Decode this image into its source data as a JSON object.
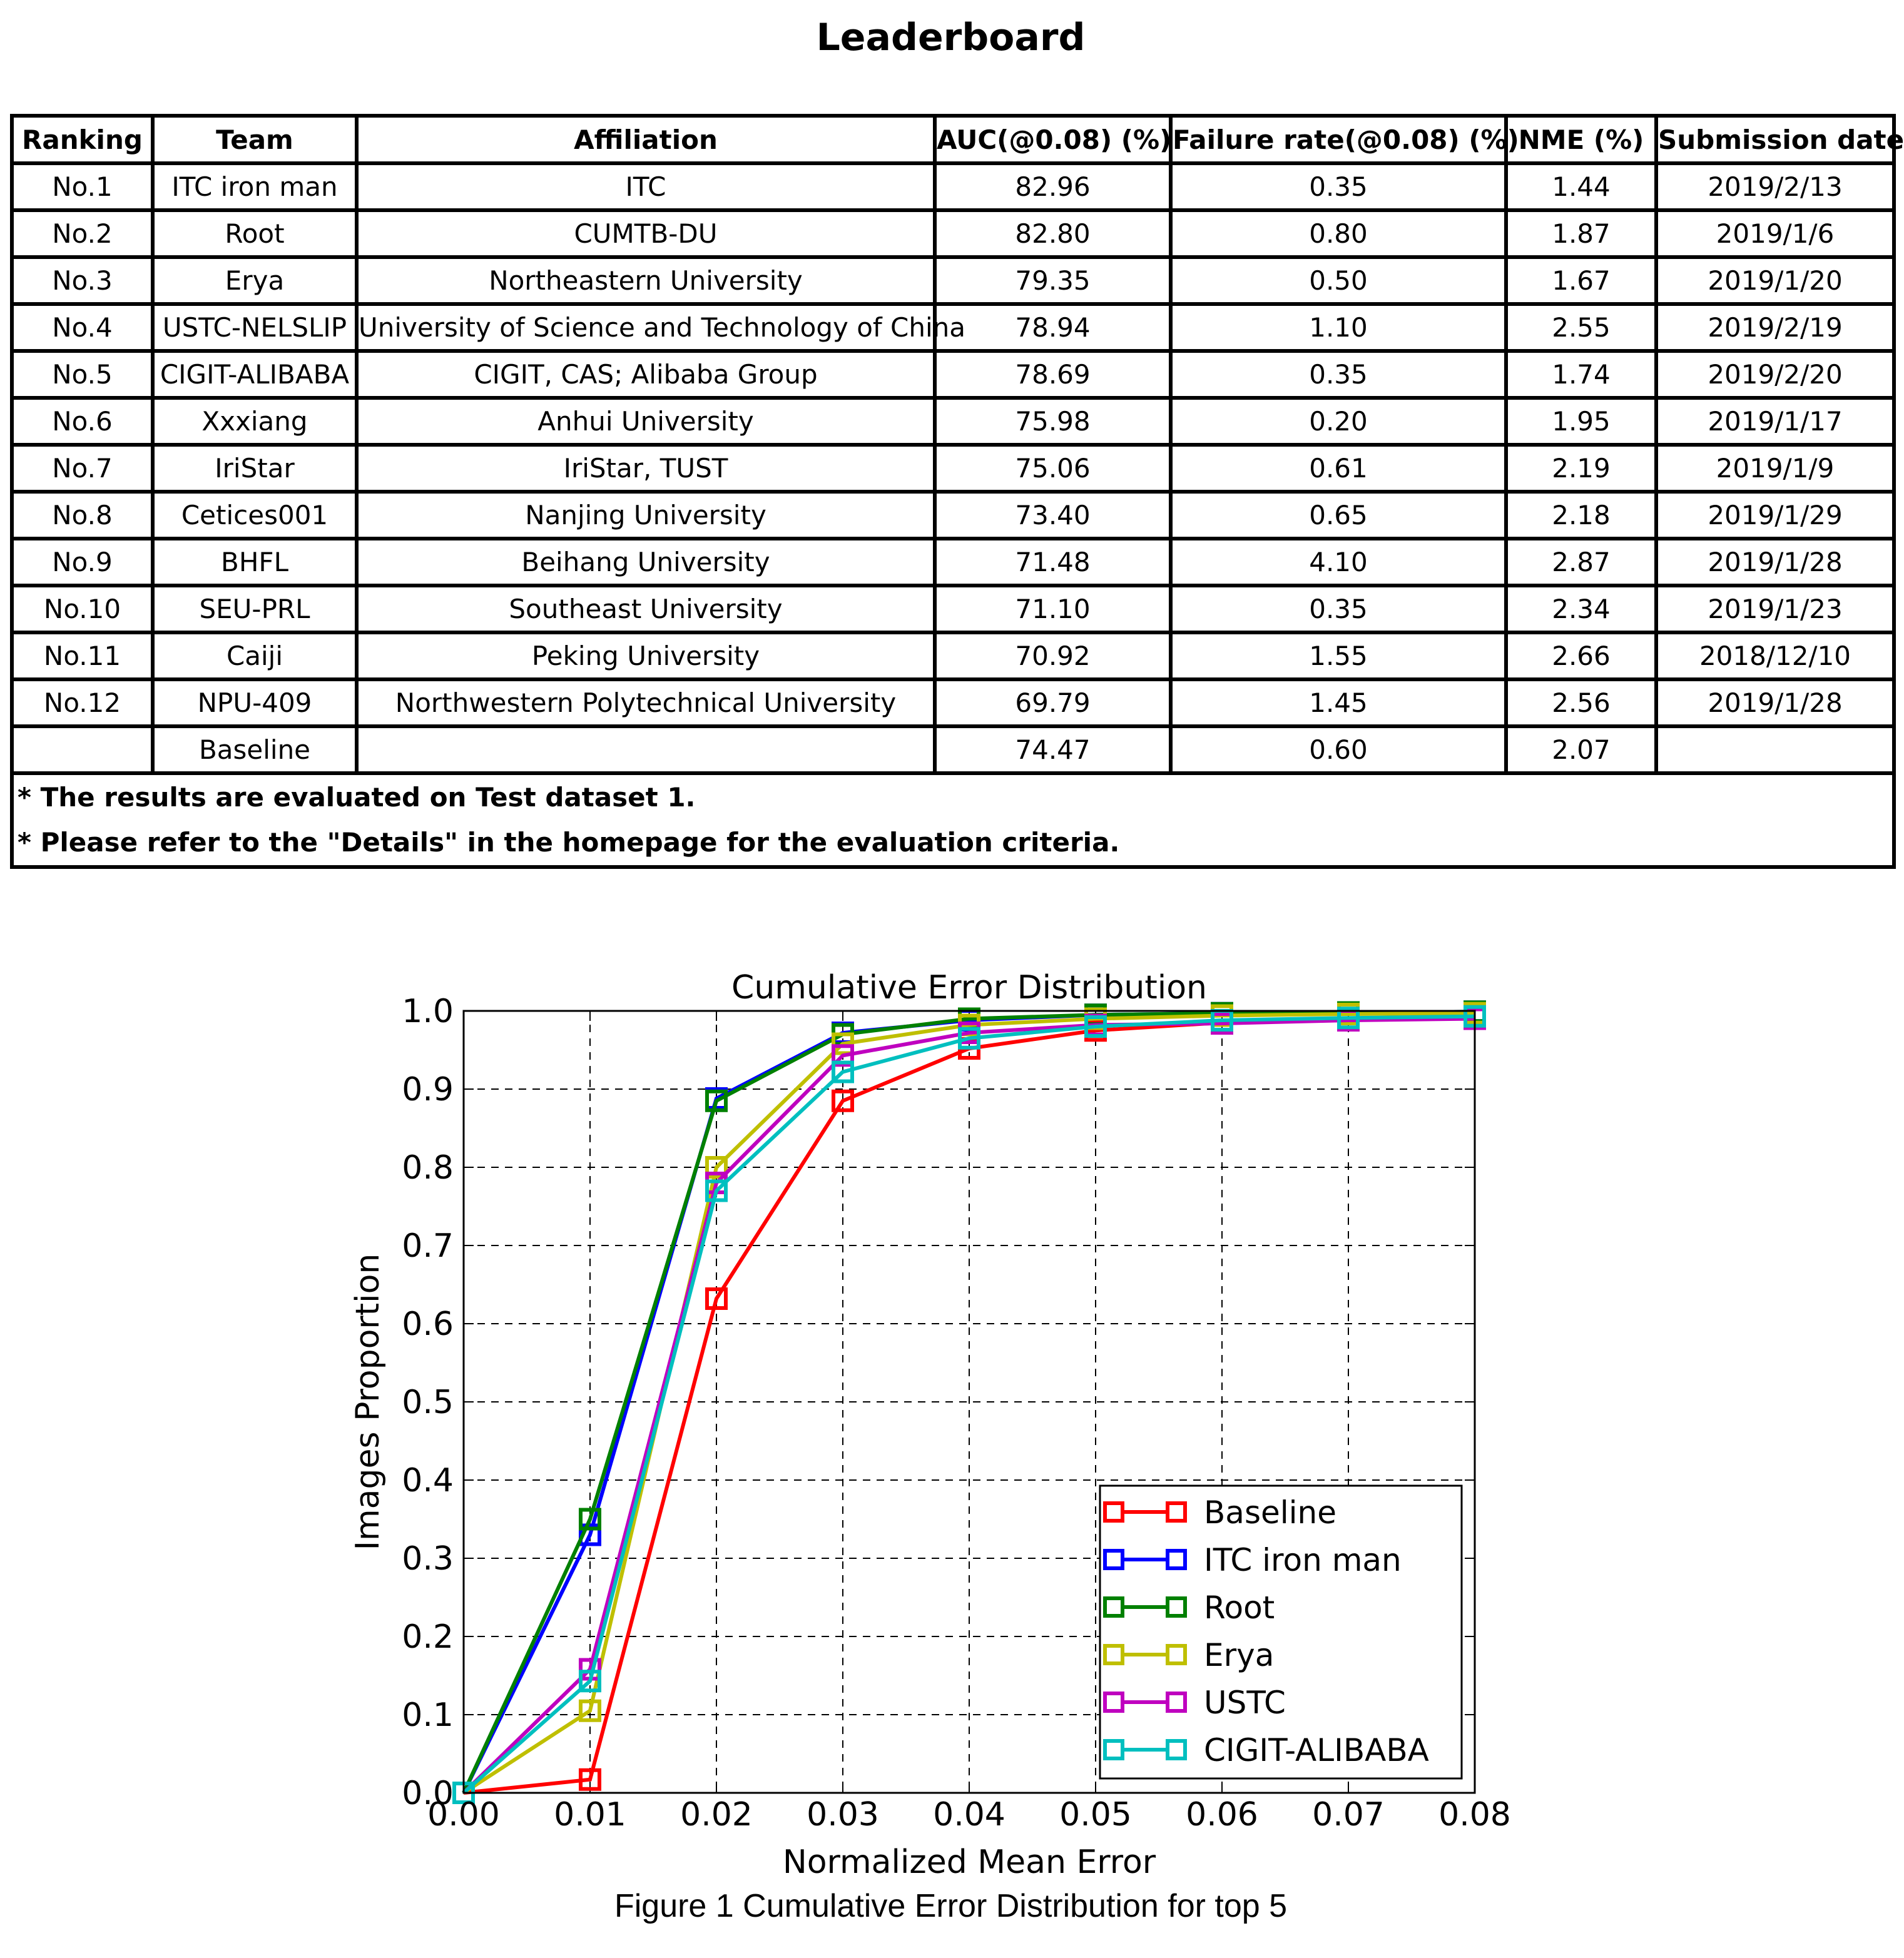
{
  "title": "Leaderboard",
  "table": {
    "headers": [
      "Ranking",
      "Team",
      "Affiliation",
      "AUC(@0.08) (%)",
      "Failure rate(@0.08) (%)",
      "NME (%)",
      "Submission date"
    ],
    "rows": [
      [
        "No.1",
        "ITC iron man",
        "ITC",
        "82.96",
        "0.35",
        "1.44",
        "2019/2/13"
      ],
      [
        "No.2",
        "Root",
        "CUMTB-DU",
        "82.80",
        "0.80",
        "1.87",
        "2019/1/6"
      ],
      [
        "No.3",
        "Erya",
        "Northeastern University",
        "79.35",
        "0.50",
        "1.67",
        "2019/1/20"
      ],
      [
        "No.4",
        "USTC-NELSLIP",
        "University of Science and Technology of China",
        "78.94",
        "1.10",
        "2.55",
        "2019/2/19"
      ],
      [
        "No.5",
        "CIGIT-ALIBABA",
        "CIGIT, CAS; Alibaba Group",
        "78.69",
        "0.35",
        "1.74",
        "2019/2/20"
      ],
      [
        "No.6",
        "Xxxiang",
        "Anhui University",
        "75.98",
        "0.20",
        "1.95",
        "2019/1/17"
      ],
      [
        "No.7",
        "IriStar",
        "IriStar, TUST",
        "75.06",
        "0.61",
        "2.19",
        "2019/1/9"
      ],
      [
        "No.8",
        "Cetices001",
        "Nanjing University",
        "73.40",
        "0.65",
        "2.18",
        "2019/1/29"
      ],
      [
        "No.9",
        "BHFL",
        "Beihang University",
        "71.48",
        "4.10",
        "2.87",
        "2019/1/28"
      ],
      [
        "No.10",
        "SEU-PRL",
        "Southeast University",
        "71.10",
        "0.35",
        "2.34",
        "2019/1/23"
      ],
      [
        "No.11",
        "Caiji",
        "Peking University",
        "70.92",
        "1.55",
        "2.66",
        "2018/12/10"
      ],
      [
        "No.12",
        "NPU-409",
        "Northwestern Polytechnical University",
        "69.79",
        "1.45",
        "2.56",
        "2019/1/28"
      ],
      [
        "",
        "Baseline",
        "",
        "74.47",
        "0.60",
        "2.07",
        ""
      ]
    ],
    "notes": [
      "* The results are evaluated on Test dataset 1.",
      "* Please refer to the \"Details\" in the homepage for the evaluation criteria."
    ]
  },
  "chart_data": {
    "type": "line",
    "title": "Cumulative Error Distribution",
    "xlabel": "Normalized Mean Error",
    "ylabel": "Images Proportion",
    "xlim": [
      0.0,
      0.08
    ],
    "ylim": [
      0.0,
      1.0
    ],
    "xticks": [
      "0.00",
      "0.01",
      "0.02",
      "0.03",
      "0.04",
      "0.05",
      "0.06",
      "0.07",
      "0.08"
    ],
    "yticks": [
      "0.0",
      "0.1",
      "0.2",
      "0.3",
      "0.4",
      "0.5",
      "0.6",
      "0.7",
      "0.8",
      "0.9",
      "1.0"
    ],
    "grid": true,
    "legend_position": "lower-right",
    "x": [
      0.0,
      0.01,
      0.02,
      0.03,
      0.04,
      0.05,
      0.06,
      0.07,
      0.08
    ],
    "series": [
      {
        "name": "Baseline",
        "color": "#ff0000",
        "values": [
          0.0,
          0.017,
          0.632,
          0.885,
          0.952,
          0.975,
          0.985,
          0.99,
          0.993
        ]
      },
      {
        "name": "ITC iron man",
        "color": "#0000ff",
        "values": [
          0.0,
          0.33,
          0.888,
          0.972,
          0.988,
          0.995,
          0.997,
          0.998,
          0.999
        ]
      },
      {
        "name": "Root",
        "color": "#008000",
        "values": [
          0.0,
          0.35,
          0.885,
          0.97,
          0.99,
          0.995,
          0.997,
          0.998,
          0.999
        ]
      },
      {
        "name": "Erya",
        "color": "#bfbf00",
        "values": [
          0.0,
          0.105,
          0.8,
          0.958,
          0.982,
          0.99,
          0.994,
          0.996,
          0.997
        ]
      },
      {
        "name": "USTC",
        "color": "#bf00bf",
        "values": [
          0.0,
          0.158,
          0.78,
          0.943,
          0.972,
          0.982,
          0.984,
          0.988,
          0.99
        ]
      },
      {
        "name": "CIGIT-ALIBABA",
        "color": "#00bfbf",
        "values": [
          0.0,
          0.143,
          0.77,
          0.922,
          0.965,
          0.98,
          0.988,
          0.991,
          0.993
        ]
      }
    ]
  },
  "caption": "Figure 1   Cumulative Error Distribution for top 5"
}
